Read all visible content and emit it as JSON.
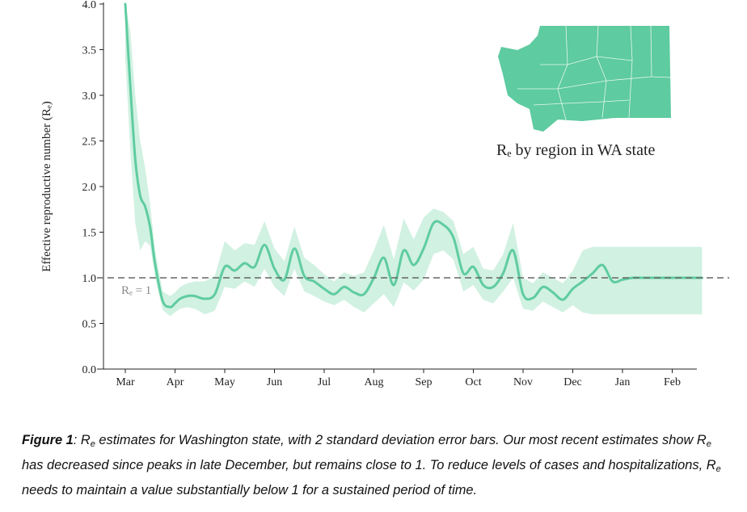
{
  "chart_data": {
    "type": "line",
    "title": "",
    "xlabel": "",
    "ylabel": "Effective reproductive number (Rₑ)",
    "ylim": [
      0,
      4.0
    ],
    "y_ticks": [
      "0.0",
      "0.5",
      "1.0",
      "1.5",
      "2.0",
      "2.5",
      "3.0",
      "3.5",
      "4.0"
    ],
    "x_ticks": [
      "Mar",
      "Apr",
      "May",
      "Jun",
      "Jul",
      "Aug",
      "Sep",
      "Oct",
      "Nov",
      "Dec",
      "Jan",
      "Feb"
    ],
    "reference_line": {
      "y": 1.0,
      "label": "Rₑ = 1",
      "style": "dashed"
    },
    "inset_label": "Rₑ by region in WA state",
    "grid": false,
    "colors": {
      "line": "#5fcca0",
      "band": "#c9eedd",
      "map": "#5ecba0",
      "reference": "#666666"
    },
    "series": [
      {
        "x": [
          0.0,
          0.1,
          0.2,
          0.3,
          0.4,
          0.5,
          0.6,
          0.75,
          0.9,
          1.0,
          1.1,
          1.25,
          1.4,
          1.6,
          1.8,
          2.0,
          2.2,
          2.4,
          2.6,
          2.8,
          3.0,
          3.2,
          3.4,
          3.6,
          3.8,
          4.0,
          4.2,
          4.4,
          4.6,
          4.8,
          5.0,
          5.2,
          5.4,
          5.6,
          5.8,
          6.0,
          6.2,
          6.4,
          6.6,
          6.8,
          7.0,
          7.2,
          7.4,
          7.6,
          7.8,
          8.0,
          8.2,
          8.4,
          8.6,
          8.8,
          9.0,
          9.2,
          9.4,
          9.6,
          9.8,
          10.0,
          10.2,
          10.4,
          10.6,
          10.8,
          11.0,
          11.2,
          11.4,
          11.6
        ],
        "values": [
          4.0,
          3.1,
          2.3,
          1.9,
          1.78,
          1.55,
          1.15,
          0.75,
          0.68,
          0.72,
          0.77,
          0.8,
          0.8,
          0.77,
          0.82,
          1.12,
          1.08,
          1.16,
          1.12,
          1.36,
          1.1,
          0.98,
          1.32,
          1.02,
          0.96,
          0.88,
          0.82,
          0.9,
          0.84,
          0.82,
          1.0,
          1.22,
          0.92,
          1.3,
          1.14,
          1.32,
          1.6,
          1.58,
          1.44,
          1.05,
          1.12,
          0.92,
          0.9,
          1.05,
          1.3,
          0.82,
          0.78,
          0.9,
          0.84,
          0.76,
          0.88,
          0.96,
          1.05,
          1.14,
          0.96,
          0.98,
          1.0,
          1.0,
          1.0,
          1.0,
          1.0,
          1.0,
          1.0,
          1.0
        ],
        "lower": [
          3.4,
          2.4,
          1.6,
          1.3,
          1.4,
          1.35,
          1.0,
          0.65,
          0.58,
          0.62,
          0.66,
          0.68,
          0.66,
          0.6,
          0.64,
          0.9,
          0.88,
          0.96,
          0.9,
          1.1,
          0.9,
          0.8,
          1.1,
          0.85,
          0.8,
          0.74,
          0.7,
          0.76,
          0.68,
          0.62,
          0.72,
          0.82,
          0.68,
          0.95,
          0.86,
          0.98,
          1.26,
          1.3,
          1.2,
          0.85,
          0.92,
          0.76,
          0.72,
          0.85,
          1.0,
          0.66,
          0.64,
          0.74,
          0.68,
          0.62,
          0.7,
          0.62,
          0.6,
          0.6,
          0.6,
          0.6,
          0.6,
          0.6,
          0.6,
          0.6,
          0.6,
          0.6,
          0.6,
          0.6
        ],
        "upper": [
          4.0,
          3.7,
          3.0,
          2.5,
          2.2,
          1.8,
          1.3,
          0.85,
          0.8,
          0.84,
          0.9,
          0.94,
          0.96,
          0.96,
          1.02,
          1.4,
          1.3,
          1.38,
          1.36,
          1.62,
          1.32,
          1.18,
          1.56,
          1.22,
          1.14,
          1.04,
          0.96,
          1.06,
          1.02,
          1.06,
          1.3,
          1.58,
          1.2,
          1.65,
          1.42,
          1.66,
          1.76,
          1.72,
          1.62,
          1.26,
          1.34,
          1.1,
          1.08,
          1.26,
          1.6,
          1.0,
          0.94,
          1.06,
          1.0,
          0.94,
          1.08,
          1.3,
          1.34,
          1.34,
          1.34,
          1.34,
          1.34,
          1.34,
          1.34,
          1.34,
          1.34,
          1.34,
          1.34,
          1.34
        ]
      }
    ]
  },
  "caption": {
    "label": "Figure 1",
    "sep": ":",
    "re_main": "R",
    "re_sub": "e",
    "text1": " estimates for Washington state, with 2 standard deviation error bars. Our most recent estimates show ",
    "text2": " has decreased since peaks in late December, but remains close to 1. To reduce levels of cases and hospitalizations, ",
    "text3": " needs to maintain a value substantially below 1 for a sustained period of time."
  }
}
